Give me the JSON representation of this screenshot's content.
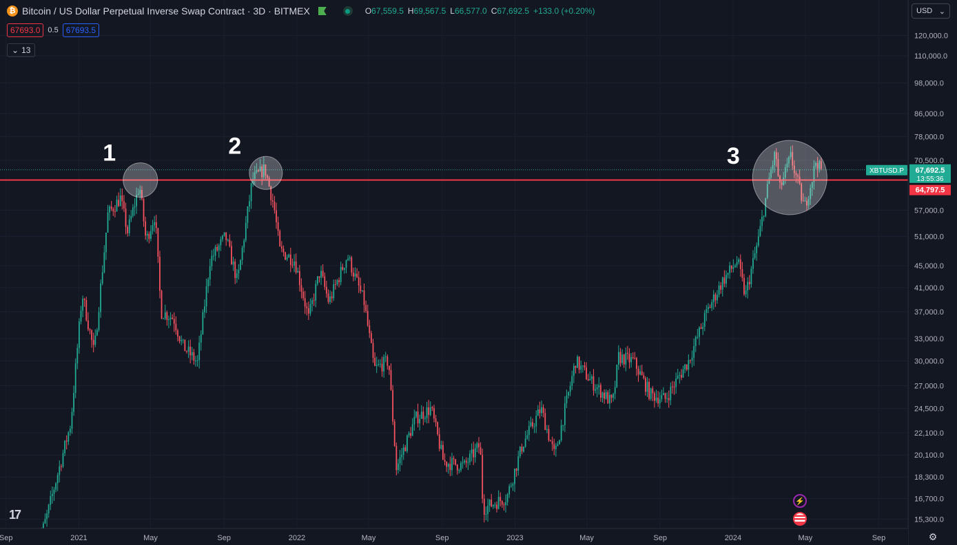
{
  "header": {
    "title": "Bitcoin / US Dollar Perpetual Inverse Swap Contract · 3D · BITMEX",
    "ohlc": [
      {
        "k": "O",
        "v": "67,559.5"
      },
      {
        "k": "H",
        "v": "69,567.5"
      },
      {
        "k": "L",
        "v": "66,577.0"
      },
      {
        "k": "C",
        "v": "67,692.5"
      }
    ],
    "change": "+133.0 (+0.20%)"
  },
  "bidask": {
    "bid": "67693.0",
    "spread": "0.5",
    "ask": "67693.5"
  },
  "indicators": {
    "count": "13"
  },
  "currency": "USD",
  "colors": {
    "up": "#22ab94",
    "down": "#f7525f",
    "resistance": "#f23645",
    "bg": "#131722"
  },
  "chart_data": {
    "type": "candlestick",
    "symbol": "XBTUSD.P",
    "price_axis_labels": [
      "120,000.0",
      "110,000.0",
      "98,000.0",
      "86,000.0",
      "78,000.0",
      "70,500.0",
      "57,000.0",
      "51,000.0",
      "45,000.0",
      "41,000.0",
      "37,000.0",
      "33,000.0",
      "30,000.0",
      "27,000.0",
      "24,500.0",
      "22,100.0",
      "20,100.0",
      "18,300.0",
      "16,700.0",
      "15,300.0"
    ],
    "time_axis_labels": [
      {
        "label": "Sep",
        "date": "2020-09-01"
      },
      {
        "label": "2021",
        "date": "2021-01-01"
      },
      {
        "label": "May",
        "date": "2021-05-01"
      },
      {
        "label": "Sep",
        "date": "2021-09-01"
      },
      {
        "label": "2022",
        "date": "2022-01-01"
      },
      {
        "label": "May",
        "date": "2022-05-01"
      },
      {
        "label": "Sep",
        "date": "2022-09-01"
      },
      {
        "label": "2023",
        "date": "2023-01-01"
      },
      {
        "label": "May",
        "date": "2023-05-01"
      },
      {
        "label": "Sep",
        "date": "2023-09-01"
      },
      {
        "label": "2024",
        "date": "2024-01-01"
      },
      {
        "label": "May",
        "date": "2024-05-01"
      },
      {
        "label": "Sep",
        "date": "2024-09-01"
      }
    ],
    "scale": "log",
    "ylim": [
      14700,
      127000
    ],
    "xlim": [
      "2020-08-22",
      "2024-10-20"
    ],
    "last_price": "67,692.5",
    "countdown": "13:55:36",
    "resistance_level": 64797.5,
    "resistance_label": "64,797.5",
    "annotations": [
      {
        "label": "1",
        "date": "2021-04-14",
        "price": 64800
      },
      {
        "label": "2",
        "date": "2021-11-10",
        "price": 66800
      },
      {
        "label": "3",
        "date": "2024-04-05",
        "price": 65500
      }
    ],
    "price_path": [
      [
        "2020-10-20",
        13000
      ],
      [
        "2020-11-10",
        15500
      ],
      [
        "2020-11-25",
        18000
      ],
      [
        "2020-12-20",
        23000
      ],
      [
        "2021-01-08",
        40000
      ],
      [
        "2021-01-28",
        31000
      ],
      [
        "2021-02-20",
        56000
      ],
      [
        "2021-03-13",
        60000
      ],
      [
        "2021-03-25",
        52000
      ],
      [
        "2021-04-14",
        63500
      ],
      [
        "2021-04-25",
        50000
      ],
      [
        "2021-05-10",
        56000
      ],
      [
        "2021-05-20",
        37000
      ],
      [
        "2021-06-10",
        36000
      ],
      [
        "2021-06-25",
        32000
      ],
      [
        "2021-07-20",
        29800
      ],
      [
        "2021-08-10",
        46000
      ],
      [
        "2021-09-05",
        51000
      ],
      [
        "2021-09-25",
        42000
      ],
      [
        "2021-10-20",
        65000
      ],
      [
        "2021-11-10",
        68000
      ],
      [
        "2021-11-25",
        58000
      ],
      [
        "2021-12-05",
        48000
      ],
      [
        "2021-12-30",
        46000
      ],
      [
        "2022-01-22",
        36000
      ],
      [
        "2022-02-10",
        44000
      ],
      [
        "2022-02-25",
        38500
      ],
      [
        "2022-03-28",
        47000
      ],
      [
        "2022-04-25",
        38500
      ],
      [
        "2022-05-12",
        29000
      ],
      [
        "2022-06-05",
        30000
      ],
      [
        "2022-06-18",
        19000
      ],
      [
        "2022-07-20",
        23500
      ],
      [
        "2022-08-15",
        24500
      ],
      [
        "2022-09-05",
        19500
      ],
      [
        "2022-10-10",
        19200
      ],
      [
        "2022-11-05",
        21000
      ],
      [
        "2022-11-10",
        16000
      ],
      [
        "2022-12-20",
        16800
      ],
      [
        "2023-01-15",
        21000
      ],
      [
        "2023-02-15",
        24500
      ],
      [
        "2023-03-10",
        20000
      ],
      [
        "2023-04-14",
        30000
      ],
      [
        "2023-05-10",
        27500
      ],
      [
        "2023-06-15",
        25000
      ],
      [
        "2023-06-25",
        30500
      ],
      [
        "2023-07-20",
        30000
      ],
      [
        "2023-08-17",
        26000
      ],
      [
        "2023-09-11",
        25500
      ],
      [
        "2023-10-20",
        30000
      ],
      [
        "2023-11-20",
        37000
      ],
      [
        "2023-12-15",
        42000
      ],
      [
        "2024-01-10",
        46000
      ],
      [
        "2024-01-23",
        39500
      ],
      [
        "2024-02-15",
        51000
      ],
      [
        "2024-03-05",
        67000
      ],
      [
        "2024-03-14",
        73000
      ],
      [
        "2024-03-20",
        62000
      ],
      [
        "2024-04-08",
        71500
      ],
      [
        "2024-04-20",
        64000
      ],
      [
        "2024-05-01",
        57500
      ],
      [
        "2024-05-15",
        66000
      ],
      [
        "2024-05-21",
        71000
      ],
      [
        "2024-05-27",
        67692.5
      ]
    ]
  }
}
